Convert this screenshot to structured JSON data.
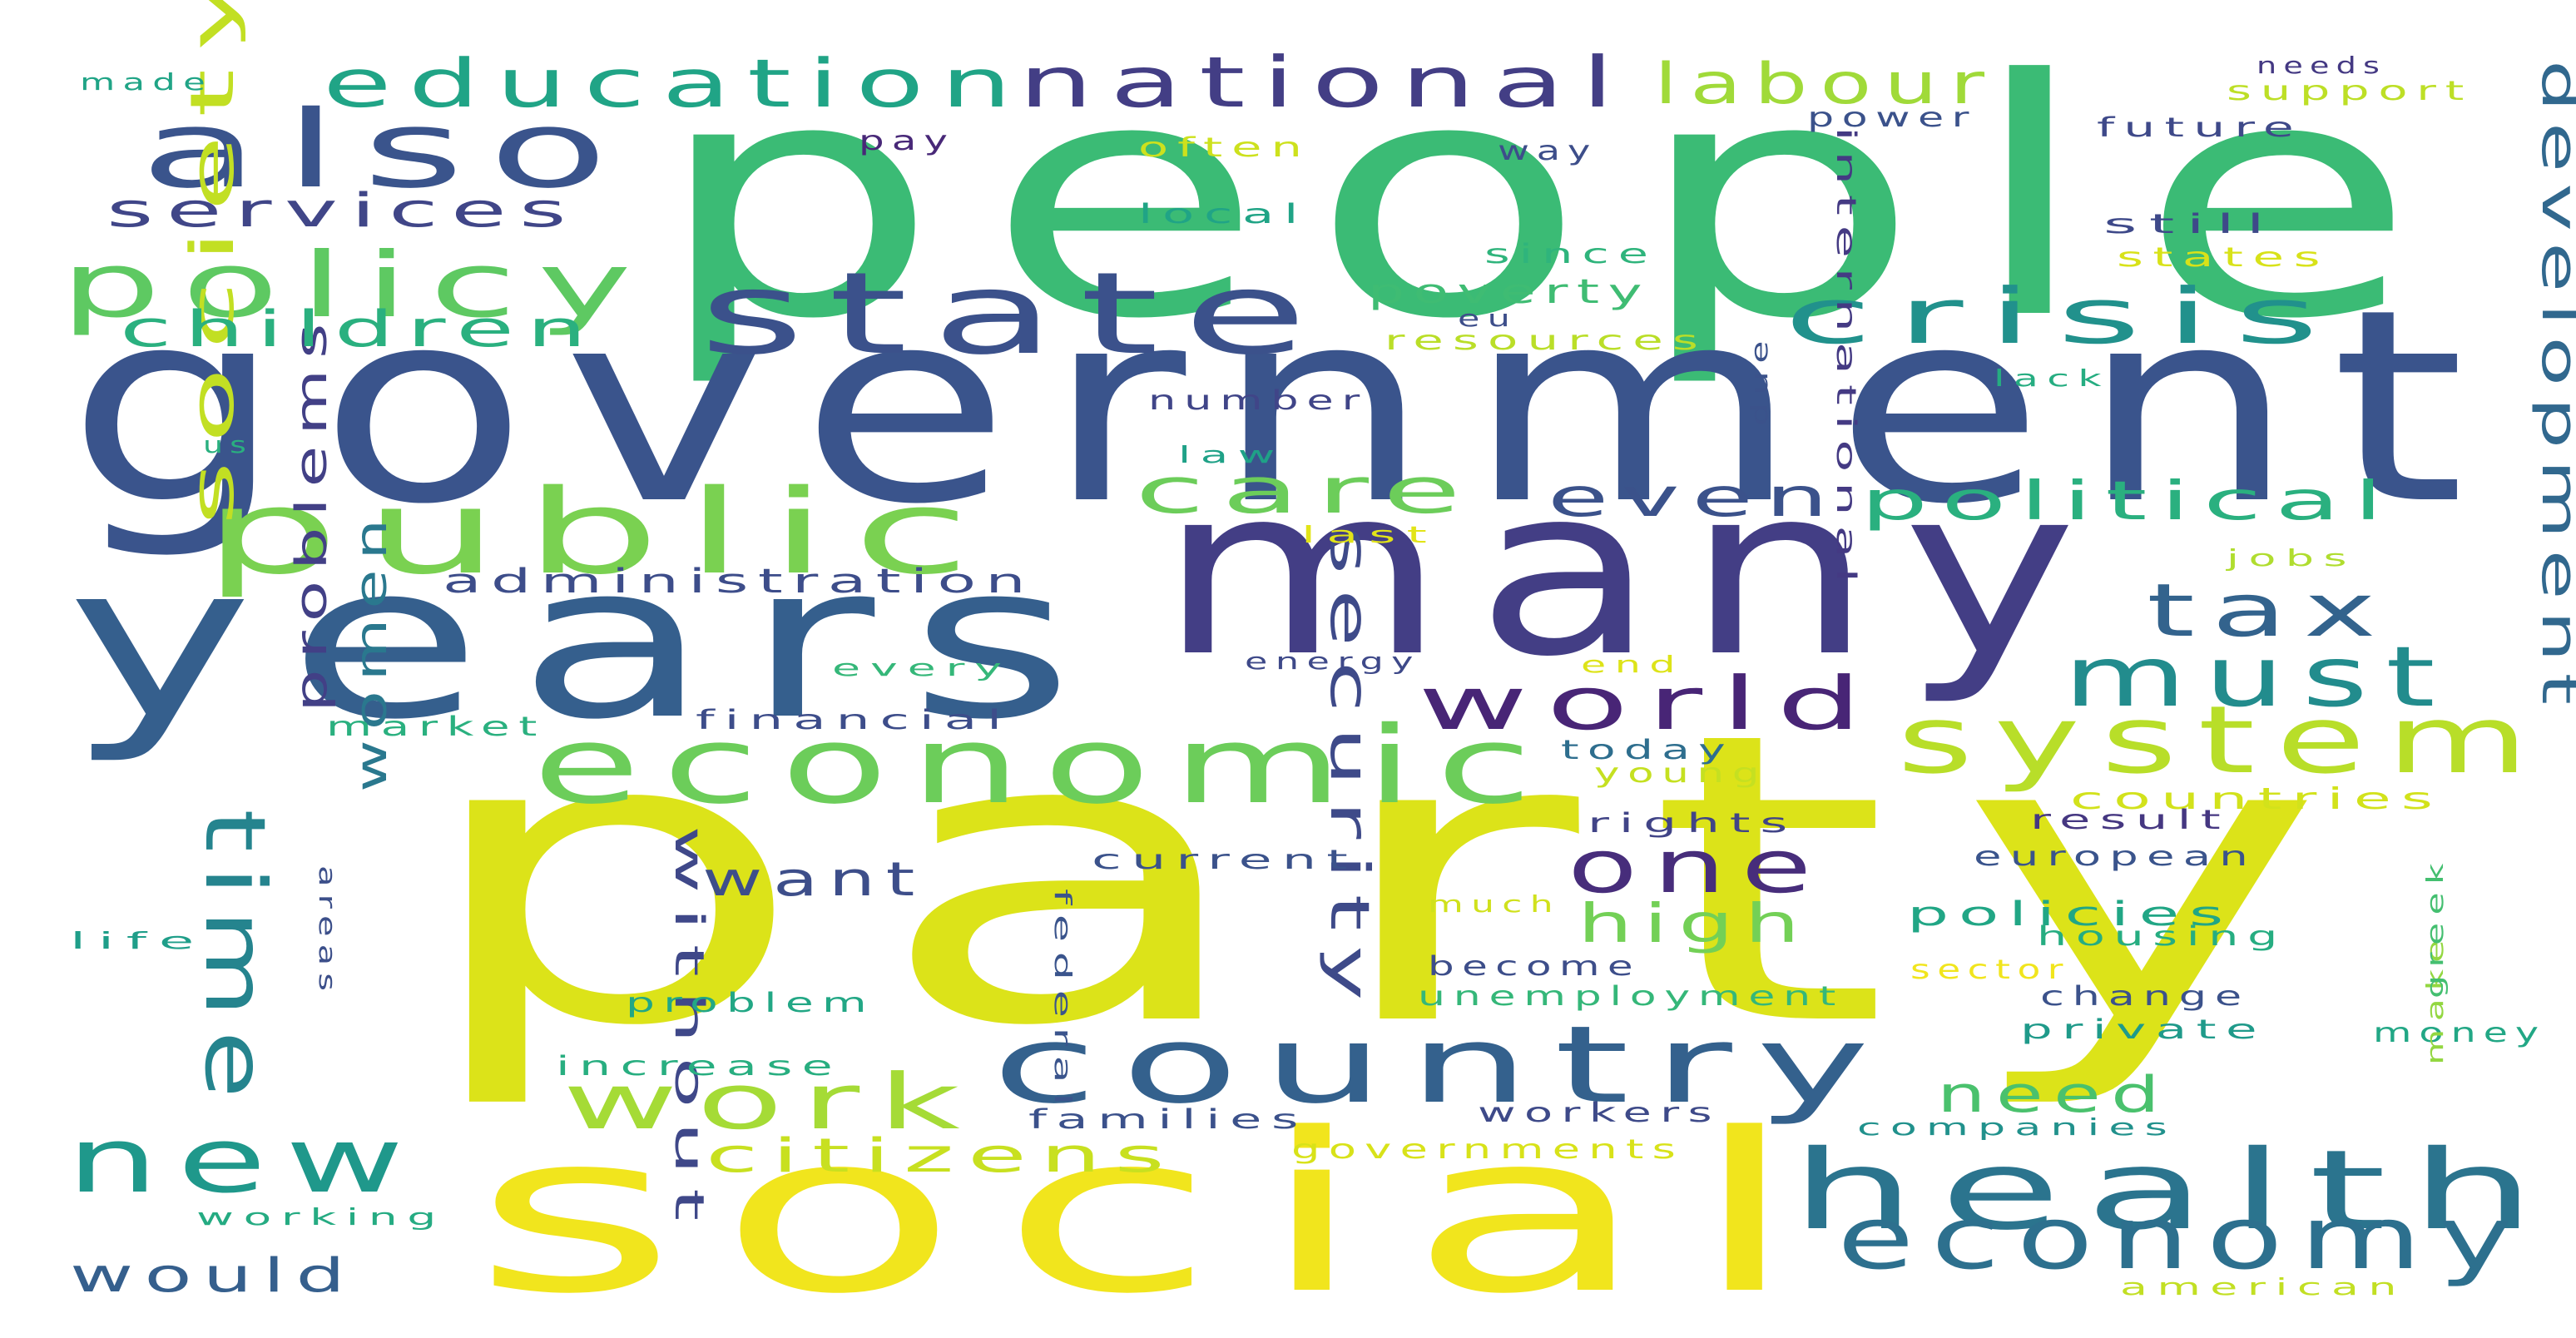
{
  "words": [
    {
      "text": "party",
      "color": "#dce319"
    },
    {
      "text": "people",
      "color": "#3bbb75"
    },
    {
      "text": "government",
      "color": "#3a548c"
    },
    {
      "text": "many",
      "color": "#433e85"
    },
    {
      "text": "years",
      "color": "#355f8d"
    },
    {
      "text": "social",
      "color": "#f1e51d"
    },
    {
      "text": "state",
      "color": "#3b518b"
    },
    {
      "text": "public",
      "color": "#7ad151"
    },
    {
      "text": "economic",
      "color": "#6ccd5a"
    },
    {
      "text": "country",
      "color": "#34618d"
    },
    {
      "text": "health",
      "color": "#2b748e"
    },
    {
      "text": "also",
      "color": "#3a548c"
    },
    {
      "text": "system",
      "color": "#b8de29"
    },
    {
      "text": "policy",
      "color": "#5ec962"
    },
    {
      "text": "crisis",
      "color": "#21918c"
    },
    {
      "text": "economy",
      "color": "#2d708e"
    },
    {
      "text": "national",
      "color": "#433e85"
    },
    {
      "text": "education",
      "color": "#20a486"
    },
    {
      "text": "new",
      "color": "#1f988b"
    },
    {
      "text": "must",
      "color": "#228c8d"
    },
    {
      "text": "world",
      "color": "#482576"
    },
    {
      "text": "one",
      "color": "#472d7b"
    },
    {
      "text": "work",
      "color": "#a5db36"
    },
    {
      "text": "tax",
      "color": "#33638d"
    },
    {
      "text": "time",
      "color": "#25848e"
    },
    {
      "text": "development",
      "color": "#31688e"
    },
    {
      "text": "security",
      "color": "#3e4a89"
    },
    {
      "text": "labour",
      "color": "#a0da39"
    },
    {
      "text": "care",
      "color": "#6ccd5a"
    },
    {
      "text": "political",
      "color": "#2ab07f"
    },
    {
      "text": "even",
      "color": "#3b528b"
    },
    {
      "text": "society",
      "color": "#c2df23"
    },
    {
      "text": "problems",
      "color": "#424086"
    },
    {
      "text": "women",
      "color": "#2a788e"
    },
    {
      "text": "children",
      "color": "#2ab07f"
    },
    {
      "text": "services",
      "color": "#404688"
    },
    {
      "text": "high",
      "color": "#73d056"
    },
    {
      "text": "need",
      "color": "#4ac16d"
    },
    {
      "text": "citizens",
      "color": "#c8e020"
    },
    {
      "text": "want",
      "color": "#3d4e8a"
    },
    {
      "text": "without",
      "color": "#3f4889"
    },
    {
      "text": "would",
      "color": "#355f8d"
    },
    {
      "text": "administration",
      "color": "#3d4d8a"
    },
    {
      "text": "international",
      "color": "#443a83"
    },
    {
      "text": "poverty",
      "color": "#3fbc73"
    },
    {
      "text": "policies",
      "color": "#21a685"
    },
    {
      "text": "countries",
      "color": "#d2e21b"
    },
    {
      "text": "resources",
      "color": "#bade28"
    },
    {
      "text": "housing",
      "color": "#26ad81"
    },
    {
      "text": "financial",
      "color": "#3d4d8a"
    },
    {
      "text": "market",
      "color": "#2ab07f"
    },
    {
      "text": "rights",
      "color": "#414487"
    },
    {
      "text": "european",
      "color": "#3a548c"
    },
    {
      "text": "today",
      "color": "#2e6e8e"
    },
    {
      "text": "young",
      "color": "#c5e021"
    },
    {
      "text": "current",
      "color": "#3b528b"
    },
    {
      "text": "federal",
      "color": "#3a548c"
    },
    {
      "text": "problem",
      "color": "#22a785"
    },
    {
      "text": "increase",
      "color": "#28ae80"
    },
    {
      "text": "families",
      "color": "#3b518b"
    },
    {
      "text": "workers",
      "color": "#3e4a89"
    },
    {
      "text": "governments",
      "color": "#d8e219"
    },
    {
      "text": "unemployment",
      "color": "#35b779"
    },
    {
      "text": "become",
      "color": "#3d4e8a"
    },
    {
      "text": "much",
      "color": "#d0e11c"
    },
    {
      "text": "sector",
      "color": "#f1e51d"
    },
    {
      "text": "companies",
      "color": "#21918c"
    },
    {
      "text": "private",
      "color": "#1f9a8a"
    },
    {
      "text": "change",
      "color": "#3b528b"
    },
    {
      "text": "result",
      "color": "#453781"
    },
    {
      "text": "money",
      "color": "#22a785"
    },
    {
      "text": "make",
      "color": "#93d741"
    },
    {
      "text": "greek",
      "color": "#44bf70"
    },
    {
      "text": "energy",
      "color": "#3e4989"
    },
    {
      "text": "every",
      "color": "#35b779"
    },
    {
      "text": "end",
      "color": "#dde318"
    },
    {
      "text": "last",
      "color": "#e2e418"
    },
    {
      "text": "law",
      "color": "#1fa187"
    },
    {
      "text": "number",
      "color": "#404588"
    },
    {
      "text": "due",
      "color": "#3b528b"
    },
    {
      "text": "lack",
      "color": "#26ad81"
    },
    {
      "text": "jobs",
      "color": "#b0dd2f"
    },
    {
      "text": "eu",
      "color": "#3d4e8a"
    },
    {
      "text": "since",
      "color": "#2fb47c"
    },
    {
      "text": "states",
      "color": "#d8e219"
    },
    {
      "text": "still",
      "color": "#3e4989"
    },
    {
      "text": "future",
      "color": "#3e4989"
    },
    {
      "text": "local",
      "color": "#20a486"
    },
    {
      "text": "often",
      "color": "#cde11d"
    },
    {
      "text": "way",
      "color": "#3d4e8a"
    },
    {
      "text": "pay",
      "color": "#482878"
    },
    {
      "text": "power",
      "color": "#3b528b"
    },
    {
      "text": "support",
      "color": "#bddf26"
    },
    {
      "text": "needs",
      "color": "#443983"
    },
    {
      "text": "made",
      "color": "#20a486"
    },
    {
      "text": "us",
      "color": "#2ab07f"
    },
    {
      "text": "life",
      "color": "#1f9e89"
    },
    {
      "text": "areas",
      "color": "#3c4f8a"
    },
    {
      "text": "working",
      "color": "#25ab82"
    },
    {
      "text": "american",
      "color": "#c2df23"
    }
  ]
}
